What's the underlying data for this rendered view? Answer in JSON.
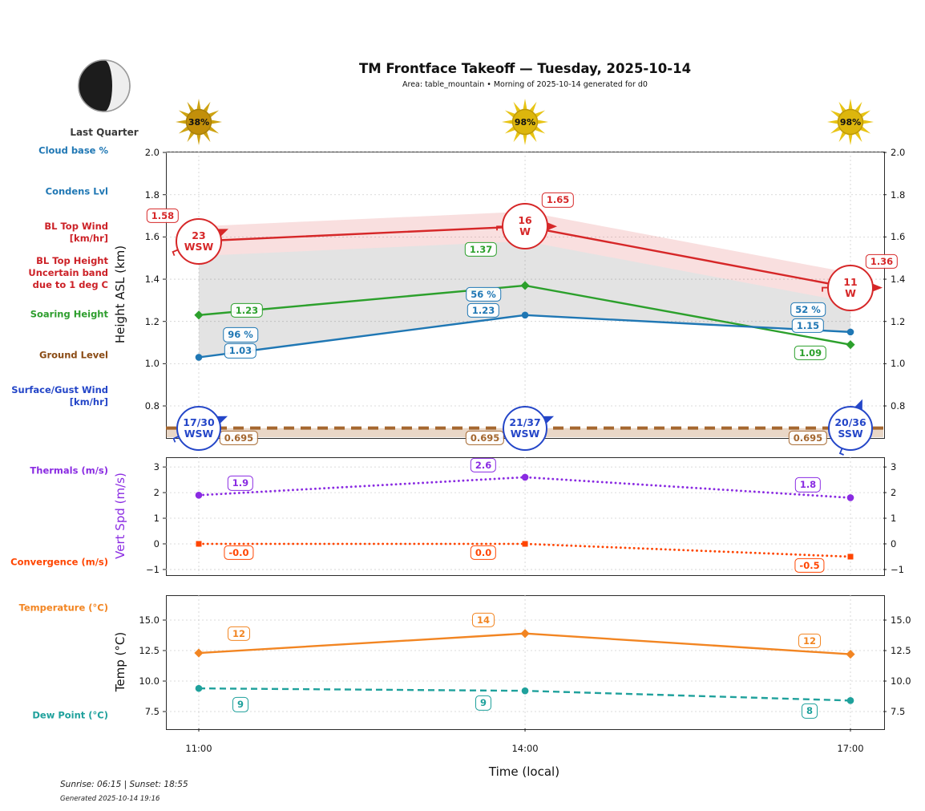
{
  "header": {
    "title": "TM Frontface Takeoff — Tuesday, 2025-10-14",
    "subtitle": "Area: table_mountain • Morning of 2025-10-14 generated for d0"
  },
  "moon": {
    "phase_label": "Last Quarter"
  },
  "sun_attenuation": [
    "38%",
    "98%",
    "98%"
  ],
  "sidebar": {
    "cloud_base": "Cloud base %",
    "condens_lvl": "Condens Lvl",
    "bl_top_wind": "BL Top Wind\n[km/hr]",
    "bl_top_height": "BL Top Height\nUncertain band\ndue to 1 deg C",
    "soaring_height": "Soaring Height",
    "ground_level": "Ground Level",
    "surface_wind": "Surface/Gust Wind\n[km/hr]",
    "thermals": "Thermals (m/s)",
    "convergence": "Convergence (m/s)",
    "temperature": "Temperature (°C)",
    "dew_point": "Dew Point (°C)"
  },
  "axes": {
    "time_label": "Time (local)",
    "x_ticks": [
      "11:00",
      "14:00",
      "17:00"
    ]
  },
  "footer": {
    "sun_times": "Sunrise: 06:15 | Sunset: 18:55",
    "generated": "Generated 2025-10-14 19:16"
  },
  "chart_data": [
    {
      "type": "line",
      "ylabel": "Height ASL (km)",
      "x": [
        "11:00",
        "14:00",
        "17:00"
      ],
      "ylim": [
        0.652,
        2.004
      ],
      "yticks": [
        2.0,
        1.8,
        1.6,
        1.4,
        1.2,
        1.0,
        0.8
      ],
      "ytick_labels": [
        "2.0",
        "1.8",
        "1.6",
        "1.4",
        "1.2",
        "1.0",
        "0.8"
      ],
      "grid": true,
      "series": [
        {
          "name": "BL Top Height",
          "color": "#d62728",
          "line": "solid",
          "marker": "none",
          "values": [
            1.58,
            1.65,
            1.36
          ],
          "labels": [
            "1.58",
            "1.65",
            "1.36"
          ],
          "uncertainty_band": 0.07
        },
        {
          "name": "Soaring Height",
          "color": "#2ca02c",
          "line": "solid",
          "marker": "diamond",
          "values": [
            1.23,
            1.37,
            1.09
          ],
          "labels": [
            "1.23",
            "1.37",
            "1.09"
          ]
        },
        {
          "name": "Condensation Level",
          "color": "#1f77b4",
          "line": "solid",
          "marker": "circle",
          "values": [
            1.03,
            1.23,
            1.15
          ],
          "labels": [
            "1.03",
            "1.23",
            "1.15"
          ]
        },
        {
          "name": "Ground Level",
          "color": "#a5672f",
          "line": "dashed",
          "marker": "none",
          "values": [
            0.695,
            0.695,
            0.695
          ],
          "labels": [
            "0.695",
            "0.695",
            "0.695"
          ],
          "full_width": true,
          "fill_below": true
        }
      ],
      "cloud_base_pct": [
        "96 %",
        "56 %",
        "52 %"
      ],
      "bl_top_wind_kmh": [
        {
          "speed": "23",
          "dir": "WSW"
        },
        {
          "speed": "16",
          "dir": "W"
        },
        {
          "speed": "11",
          "dir": "W"
        }
      ],
      "surface_gust_wind_kmh": [
        {
          "speed": "17/30",
          "dir": "WSW"
        },
        {
          "speed": "21/37",
          "dir": "WSW"
        },
        {
          "speed": "20/36",
          "dir": "SSW"
        }
      ]
    },
    {
      "type": "line",
      "ylabel": "Vert Spd (m/s)",
      "x": [
        "11:00",
        "14:00",
        "17:00"
      ],
      "ylim": [
        -1.19,
        3.38
      ],
      "yticks": [
        3,
        2,
        1,
        0,
        -1
      ],
      "ytick_labels": [
        "3",
        "2",
        "1",
        "0",
        "−1"
      ],
      "grid": true,
      "series": [
        {
          "name": "Thermals",
          "color": "#8a2be2",
          "line": "dotted",
          "marker": "circle",
          "values": [
            1.9,
            2.6,
            1.8
          ],
          "labels": [
            "1.9",
            "2.6",
            "1.8"
          ]
        },
        {
          "name": "Convergence",
          "color": "#ff4500",
          "line": "dotted",
          "marker": "square",
          "values": [
            0.0,
            0.0,
            -0.5
          ],
          "labels": [
            "-0.0",
            "0.0",
            "-0.5"
          ]
        }
      ]
    },
    {
      "type": "line",
      "ylabel": "Temp (°C)",
      "xlabel": "Time (local)",
      "x": [
        "11:00",
        "14:00",
        "17:00"
      ],
      "ylim": [
        6.12,
        17.04
      ],
      "yticks": [
        15.0,
        12.5,
        10.0,
        7.5
      ],
      "ytick_labels": [
        "15.0",
        "12.5",
        "10.0",
        "7.5"
      ],
      "grid": true,
      "series": [
        {
          "name": "Temperature",
          "color": "#f28522",
          "line": "solid",
          "marker": "diamond",
          "values": [
            12.3,
            13.9,
            12.2
          ],
          "labels": [
            "12",
            "14",
            "12"
          ]
        },
        {
          "name": "Dew Point",
          "color": "#1fa19c",
          "line": "dashed",
          "marker": "circle",
          "values": [
            9.4,
            9.2,
            8.4
          ],
          "labels": [
            "9",
            "9",
            "8"
          ]
        }
      ]
    }
  ]
}
